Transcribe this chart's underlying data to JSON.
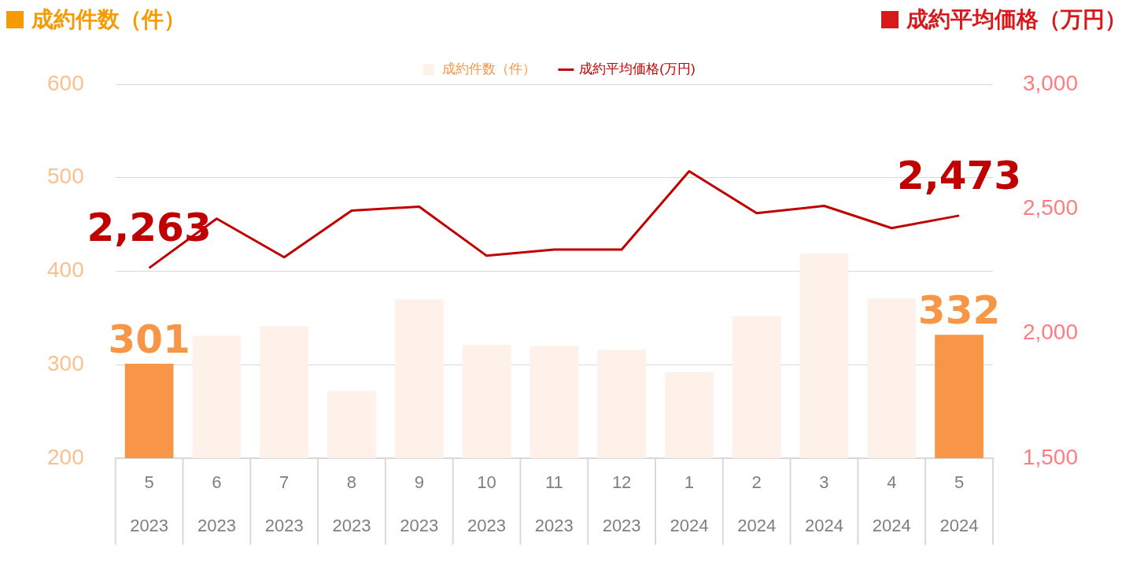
{
  "chart_data": {
    "type": "bar",
    "ylabel": "成約件数（件）",
    "y2label": "成約平均価格（万円）",
    "categories": [
      "5\n2023",
      "6\n2023",
      "7\n2023",
      "8\n2023",
      "9\n2023",
      "10\n2023",
      "11\n2023",
      "12\n2023",
      "1\n2024",
      "2\n2024",
      "3\n2024",
      "4\n2024",
      "5\n2024"
    ],
    "series": [
      {
        "name": "成約件数（件）",
        "color": "#fdf1e9",
        "colors": [
          "#f79646",
          "#fdf1e9",
          "#fdf1e9",
          "#fdf1e9",
          "#fdf1e9",
          "#fdf1e9",
          "#fdf1e9",
          "#fdf1e9",
          "#fdf1e9",
          "#fdf1e9",
          "#fdf1e9",
          "#fdf1e9",
          "#f79646"
        ],
        "values": [
          301,
          331,
          341,
          272,
          370,
          321,
          320,
          316,
          292,
          352,
          419,
          371,
          332
        ],
        "value_labels": [
          "301",
          null,
          null,
          null,
          null,
          null,
          null,
          null,
          null,
          null,
          null,
          null,
          "332"
        ]
      },
      {
        "name": "成約平均価格(万円)",
        "type": "line",
        "axis": "y2",
        "color": "#c00000",
        "values": [
          2263,
          2461,
          2306,
          2493,
          2509,
          2312,
          2337,
          2337,
          2651,
          2483,
          2512,
          2423,
          2473
        ],
        "value_labels": [
          "2,263",
          null,
          null,
          null,
          null,
          null,
          null,
          null,
          null,
          null,
          null,
          null,
          "2,473"
        ]
      }
    ],
    "ylim": [
      200,
      600
    ],
    "yticks": [
      200,
      300,
      400,
      500,
      600
    ],
    "y2lim": [
      1500,
      3000
    ],
    "y2ticks": [
      {
        "value": 1500,
        "label": "1,500"
      },
      {
        "value": 2000,
        "label": "2,000"
      },
      {
        "value": 2500,
        "label": "2,500"
      },
      {
        "value": 3000,
        "label": "3,000"
      }
    ],
    "grid": "y",
    "legend": "top",
    "marker": "none",
    "line_style": "solid"
  }
}
